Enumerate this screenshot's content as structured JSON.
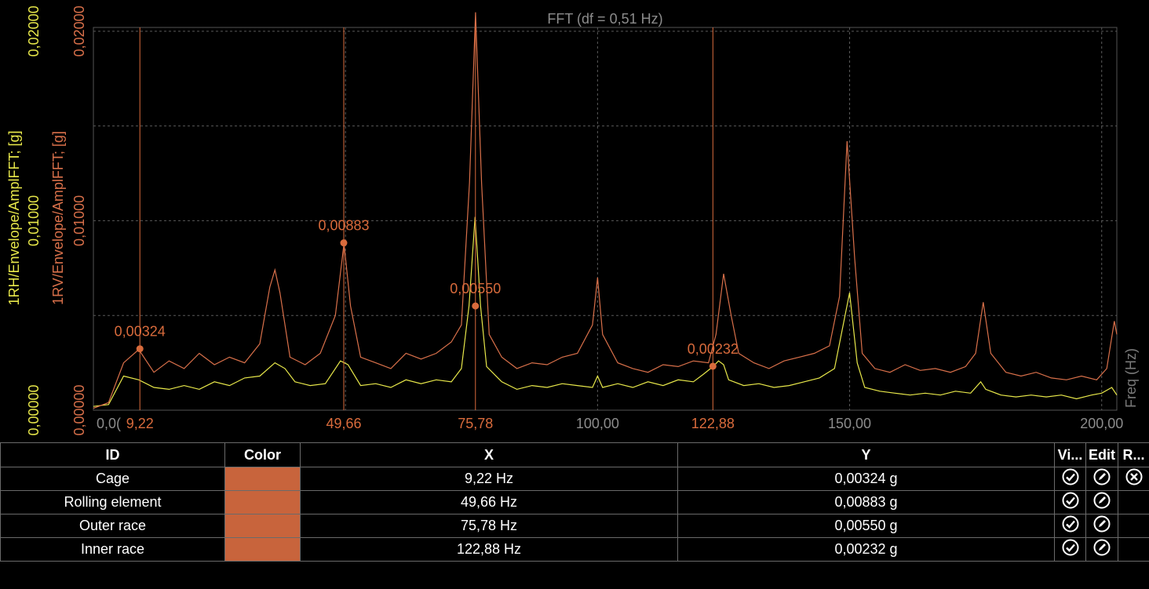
{
  "chart_data": {
    "type": "line",
    "title": "FFT (df = 0,51 Hz)",
    "xlabel": "Freq (Hz)",
    "xlim": [
      0,
      203
    ],
    "x_ticks": [
      {
        "value": 0,
        "label": "0,0("
      },
      {
        "value": 100,
        "label": "100,00"
      },
      {
        "value": 150,
        "label": "150,00"
      },
      {
        "value": 200,
        "label": "200,00"
      }
    ],
    "grid": true,
    "y_axes": [
      {
        "name": "1RH/Envelope/AmplFFT; [g]",
        "color": "#e8e84a",
        "ylim": [
          0,
          0.0202
        ],
        "ticks": [
          {
            "value": 0,
            "label": "0,00000"
          },
          {
            "value": 0.01,
            "label": "0,01000"
          },
          {
            "value": 0.02,
            "label": "0,02000"
          }
        ]
      },
      {
        "name": "1RV/Envelope/AmplFFT; [g]",
        "color": "#d9704a",
        "ylim": [
          0,
          0.0202
        ],
        "ticks": [
          {
            "value": 0,
            "label": "0,00000"
          },
          {
            "value": 0.01,
            "label": "0,01000"
          },
          {
            "value": 0.02,
            "label": "0,02000"
          }
        ]
      }
    ],
    "series": [
      {
        "name": "1RH/Envelope/AmplFFT; [g]",
        "color": "#e8e84a",
        "points": [
          [
            0,
            0.0002
          ],
          [
            3,
            0.0003
          ],
          [
            6,
            0.0018
          ],
          [
            9,
            0.0016
          ],
          [
            12,
            0.0012
          ],
          [
            15,
            0.0011
          ],
          [
            18,
            0.0013
          ],
          [
            21,
            0.0011
          ],
          [
            24,
            0.0015
          ],
          [
            27,
            0.0013
          ],
          [
            30,
            0.0017
          ],
          [
            33,
            0.0018
          ],
          [
            36,
            0.0025
          ],
          [
            38,
            0.0022
          ],
          [
            40,
            0.0015
          ],
          [
            43,
            0.0013
          ],
          [
            46,
            0.0014
          ],
          [
            49,
            0.0026
          ],
          [
            50.5,
            0.0024
          ],
          [
            53,
            0.0013
          ],
          [
            56,
            0.0014
          ],
          [
            59,
            0.0012
          ],
          [
            62,
            0.0016
          ],
          [
            65,
            0.0014
          ],
          [
            68,
            0.0016
          ],
          [
            71,
            0.0015
          ],
          [
            73,
            0.0022
          ],
          [
            74.5,
            0.0055
          ],
          [
            75.7,
            0.0102
          ],
          [
            76.8,
            0.0055
          ],
          [
            78,
            0.0023
          ],
          [
            81,
            0.0015
          ],
          [
            84,
            0.0011
          ],
          [
            87,
            0.0013
          ],
          [
            90,
            0.0012
          ],
          [
            93,
            0.0014
          ],
          [
            96,
            0.0013
          ],
          [
            99,
            0.0012
          ],
          [
            100,
            0.0018
          ],
          [
            101,
            0.0012
          ],
          [
            104,
            0.0014
          ],
          [
            107,
            0.0012
          ],
          [
            110,
            0.0015
          ],
          [
            113,
            0.0013
          ],
          [
            116,
            0.0016
          ],
          [
            119,
            0.0015
          ],
          [
            121,
            0.0019
          ],
          [
            122.9,
            0.0023
          ],
          [
            124,
            0.0026
          ],
          [
            125,
            0.0024
          ],
          [
            126,
            0.0016
          ],
          [
            129,
            0.0013
          ],
          [
            132,
            0.0014
          ],
          [
            135,
            0.0012
          ],
          [
            138,
            0.0013
          ],
          [
            141,
            0.0015
          ],
          [
            144,
            0.0017
          ],
          [
            147,
            0.0022
          ],
          [
            148.5,
            0.0042
          ],
          [
            150,
            0.0062
          ],
          [
            151.5,
            0.0025
          ],
          [
            153,
            0.0012
          ],
          [
            156,
            0.001
          ],
          [
            159,
            0.0009
          ],
          [
            162,
            0.0008
          ],
          [
            165,
            0.0009
          ],
          [
            168,
            0.0008
          ],
          [
            171,
            0.001
          ],
          [
            174,
            0.0009
          ],
          [
            176,
            0.0015
          ],
          [
            177,
            0.0011
          ],
          [
            180,
            0.0008
          ],
          [
            183,
            0.0007
          ],
          [
            186,
            0.0008
          ],
          [
            189,
            0.0007
          ],
          [
            192,
            0.0008
          ],
          [
            195,
            0.0006
          ],
          [
            198,
            0.0008
          ],
          [
            200,
            0.0009
          ],
          [
            202,
            0.0012
          ],
          [
            203,
            0.0008
          ]
        ]
      },
      {
        "name": "1RV/Envelope/AmplFFT; [g]",
        "color": "#d9704a",
        "points": [
          [
            0,
            0.0001
          ],
          [
            3,
            0.0004
          ],
          [
            6,
            0.0025
          ],
          [
            9,
            0.0032
          ],
          [
            12,
            0.002
          ],
          [
            15,
            0.0026
          ],
          [
            18,
            0.0022
          ],
          [
            21,
            0.003
          ],
          [
            24,
            0.0024
          ],
          [
            27,
            0.0028
          ],
          [
            30,
            0.0025
          ],
          [
            33,
            0.0035
          ],
          [
            35,
            0.0065
          ],
          [
            36,
            0.0074
          ],
          [
            37,
            0.0062
          ],
          [
            39,
            0.0028
          ],
          [
            42,
            0.0024
          ],
          [
            45,
            0.003
          ],
          [
            48,
            0.005
          ],
          [
            49.7,
            0.0088
          ],
          [
            51,
            0.0055
          ],
          [
            53,
            0.0028
          ],
          [
            56,
            0.0025
          ],
          [
            59,
            0.0022
          ],
          [
            62,
            0.003
          ],
          [
            65,
            0.0027
          ],
          [
            68,
            0.003
          ],
          [
            71,
            0.0036
          ],
          [
            73,
            0.0045
          ],
          [
            74.6,
            0.012
          ],
          [
            75.8,
            0.021
          ],
          [
            77,
            0.012
          ],
          [
            78.5,
            0.004
          ],
          [
            81,
            0.0028
          ],
          [
            84,
            0.0022
          ],
          [
            87,
            0.0025
          ],
          [
            90,
            0.0024
          ],
          [
            93,
            0.0028
          ],
          [
            96,
            0.003
          ],
          [
            99,
            0.0045
          ],
          [
            100,
            0.007
          ],
          [
            101,
            0.004
          ],
          [
            104,
            0.0025
          ],
          [
            107,
            0.0022
          ],
          [
            110,
            0.002
          ],
          [
            113,
            0.0024
          ],
          [
            116,
            0.0023
          ],
          [
            119,
            0.0026
          ],
          [
            122,
            0.0025
          ],
          [
            123.5,
            0.004
          ],
          [
            125,
            0.0072
          ],
          [
            126.5,
            0.005
          ],
          [
            128,
            0.003
          ],
          [
            131,
            0.0025
          ],
          [
            134,
            0.0022
          ],
          [
            137,
            0.0026
          ],
          [
            140,
            0.0028
          ],
          [
            143,
            0.003
          ],
          [
            146,
            0.0034
          ],
          [
            148,
            0.006
          ],
          [
            149.5,
            0.0142
          ],
          [
            151,
            0.008
          ],
          [
            152.5,
            0.003
          ],
          [
            155,
            0.0022
          ],
          [
            158,
            0.002
          ],
          [
            161,
            0.0024
          ],
          [
            164,
            0.0021
          ],
          [
            167,
            0.0022
          ],
          [
            170,
            0.002
          ],
          [
            173,
            0.0023
          ],
          [
            175,
            0.003
          ],
          [
            176.5,
            0.0057
          ],
          [
            178,
            0.003
          ],
          [
            181,
            0.002
          ],
          [
            184,
            0.0018
          ],
          [
            187,
            0.002
          ],
          [
            190,
            0.0017
          ],
          [
            193,
            0.0016
          ],
          [
            196,
            0.0018
          ],
          [
            199,
            0.0016
          ],
          [
            201,
            0.0022
          ],
          [
            202.5,
            0.0047
          ],
          [
            203,
            0.004
          ]
        ]
      }
    ],
    "cursors": [
      {
        "x": 9.22,
        "y": 0.00324,
        "x_label": "9,22",
        "y_label": "0,00324"
      },
      {
        "x": 49.66,
        "y": 0.00883,
        "x_label": "49,66",
        "y_label": "0,00883"
      },
      {
        "x": 75.78,
        "y": 0.0055,
        "x_label": "75,78",
        "y_label": "0,00550"
      },
      {
        "x": 122.88,
        "y": 0.00232,
        "x_label": "122,88",
        "y_label": "0,00232"
      }
    ],
    "cursor_color": "#d96b3c"
  },
  "table": {
    "headers": {
      "id": "ID",
      "color": "Color",
      "x": "X",
      "y": "Y",
      "visible": "Vi...",
      "edit": "Edit",
      "remove": "R..."
    },
    "rows": [
      {
        "id": "Cage",
        "color": "#c8643c",
        "x": "9,22 Hz",
        "y": "0,00324 g"
      },
      {
        "id": "Rolling element",
        "color": "#c8643c",
        "x": "49,66 Hz",
        "y": "0,00883 g"
      },
      {
        "id": "Outer race",
        "color": "#c8643c",
        "x": "75,78 Hz",
        "y": "0,00550 g"
      },
      {
        "id": "Inner race",
        "color": "#c8643c",
        "x": "122,88 Hz",
        "y": "0,00232 g"
      }
    ],
    "icons": {
      "visible": "check-circle-icon",
      "edit": "pencil-circle-icon",
      "remove": "close-circle-icon"
    }
  }
}
